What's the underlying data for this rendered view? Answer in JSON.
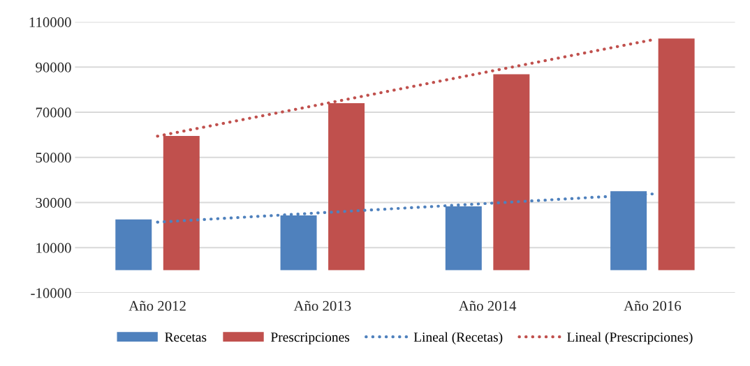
{
  "chart_data": {
    "type": "bar",
    "categories": [
      "Año 2012",
      "Año 2013",
      "Año 2014",
      "Año 2016"
    ],
    "series": [
      {
        "name": "Recetas",
        "color": "#4f81bd",
        "values": [
          22500,
          24300,
          28300,
          35000
        ]
      },
      {
        "name": "Prescripciones",
        "color": "#c0504d",
        "values": [
          59500,
          74000,
          86800,
          102700
        ]
      },
      {
        "name": "Lineal (Recetas)",
        "type": "line",
        "line_style": "dotted",
        "color": "#4f81bd",
        "values": [
          21300,
          25500,
          29600,
          33800
        ]
      },
      {
        "name": "Lineal (Prescripciones)",
        "type": "line",
        "line_style": "dotted",
        "color": "#c0504d",
        "values": [
          59400,
          73600,
          87900,
          102100
        ]
      }
    ],
    "ylim": [
      -10000,
      110000
    ],
    "yticks": [
      -10000,
      10000,
      30000,
      50000,
      70000,
      90000,
      110000
    ],
    "grid": "y",
    "legend": "bottom"
  }
}
